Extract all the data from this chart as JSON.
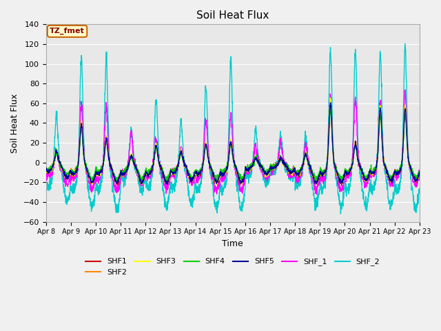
{
  "title": "Soil Heat Flux",
  "ylabel": "Soil Heat Flux",
  "xlabel": "Time",
  "ylim": [
    -60,
    140
  ],
  "n_days": 15,
  "x_tick_labels": [
    "Apr 8",
    "Apr 9",
    "Apr 10",
    "Apr 11",
    "Apr 12",
    "Apr 13",
    "Apr 14",
    "Apr 15",
    "Apr 16",
    "Apr 17",
    "Apr 18",
    "Apr 19",
    "Apr 20",
    "Apr 21",
    "Apr 22",
    "Apr 23"
  ],
  "series_colors": {
    "SHF1": "#cc0000",
    "SHF2": "#ff8800",
    "SHF3": "#ffff00",
    "SHF4": "#00cc00",
    "SHF5": "#000099",
    "SHF_1": "#ff00ff",
    "SHF_2": "#00cccc"
  },
  "fig_bg": "#f0f0f0",
  "plot_bg": "#e8e8e8",
  "grid_color": "#ffffff",
  "annotation_text": "TZ_fmet",
  "annotation_bg": "#ffffcc",
  "annotation_border": "#cc6600",
  "annotation_text_color": "#880000",
  "shf_peaks": [
    12,
    40,
    25,
    8,
    18,
    12,
    20,
    22,
    5,
    5,
    10,
    60,
    20,
    55,
    55
  ],
  "shf_troughs": [
    -15,
    -20,
    -20,
    -20,
    -20,
    -18,
    -20,
    -20,
    -12,
    -10,
    -20,
    -20,
    -18,
    -18,
    -18
  ],
  "shf2_cy_peaks": [
    52,
    110,
    110,
    35,
    67,
    45,
    80,
    107,
    35,
    30,
    30,
    117,
    116,
    115,
    120
  ],
  "shf2_cy_troughs": [
    -40,
    -45,
    -47,
    -28,
    -44,
    -42,
    -47,
    -47,
    -20,
    -15,
    -42,
    -44,
    -45,
    -44,
    -46
  ],
  "shf_mag_peaks": [
    13,
    60,
    59,
    32,
    25,
    15,
    45,
    50,
    18,
    20,
    20,
    70,
    65,
    65,
    70
  ],
  "shf_mag_troughs": [
    -22,
    -28,
    -28,
    -20,
    -25,
    -20,
    -28,
    -28,
    -15,
    -12,
    -28,
    -28,
    -22,
    -22,
    -22
  ]
}
